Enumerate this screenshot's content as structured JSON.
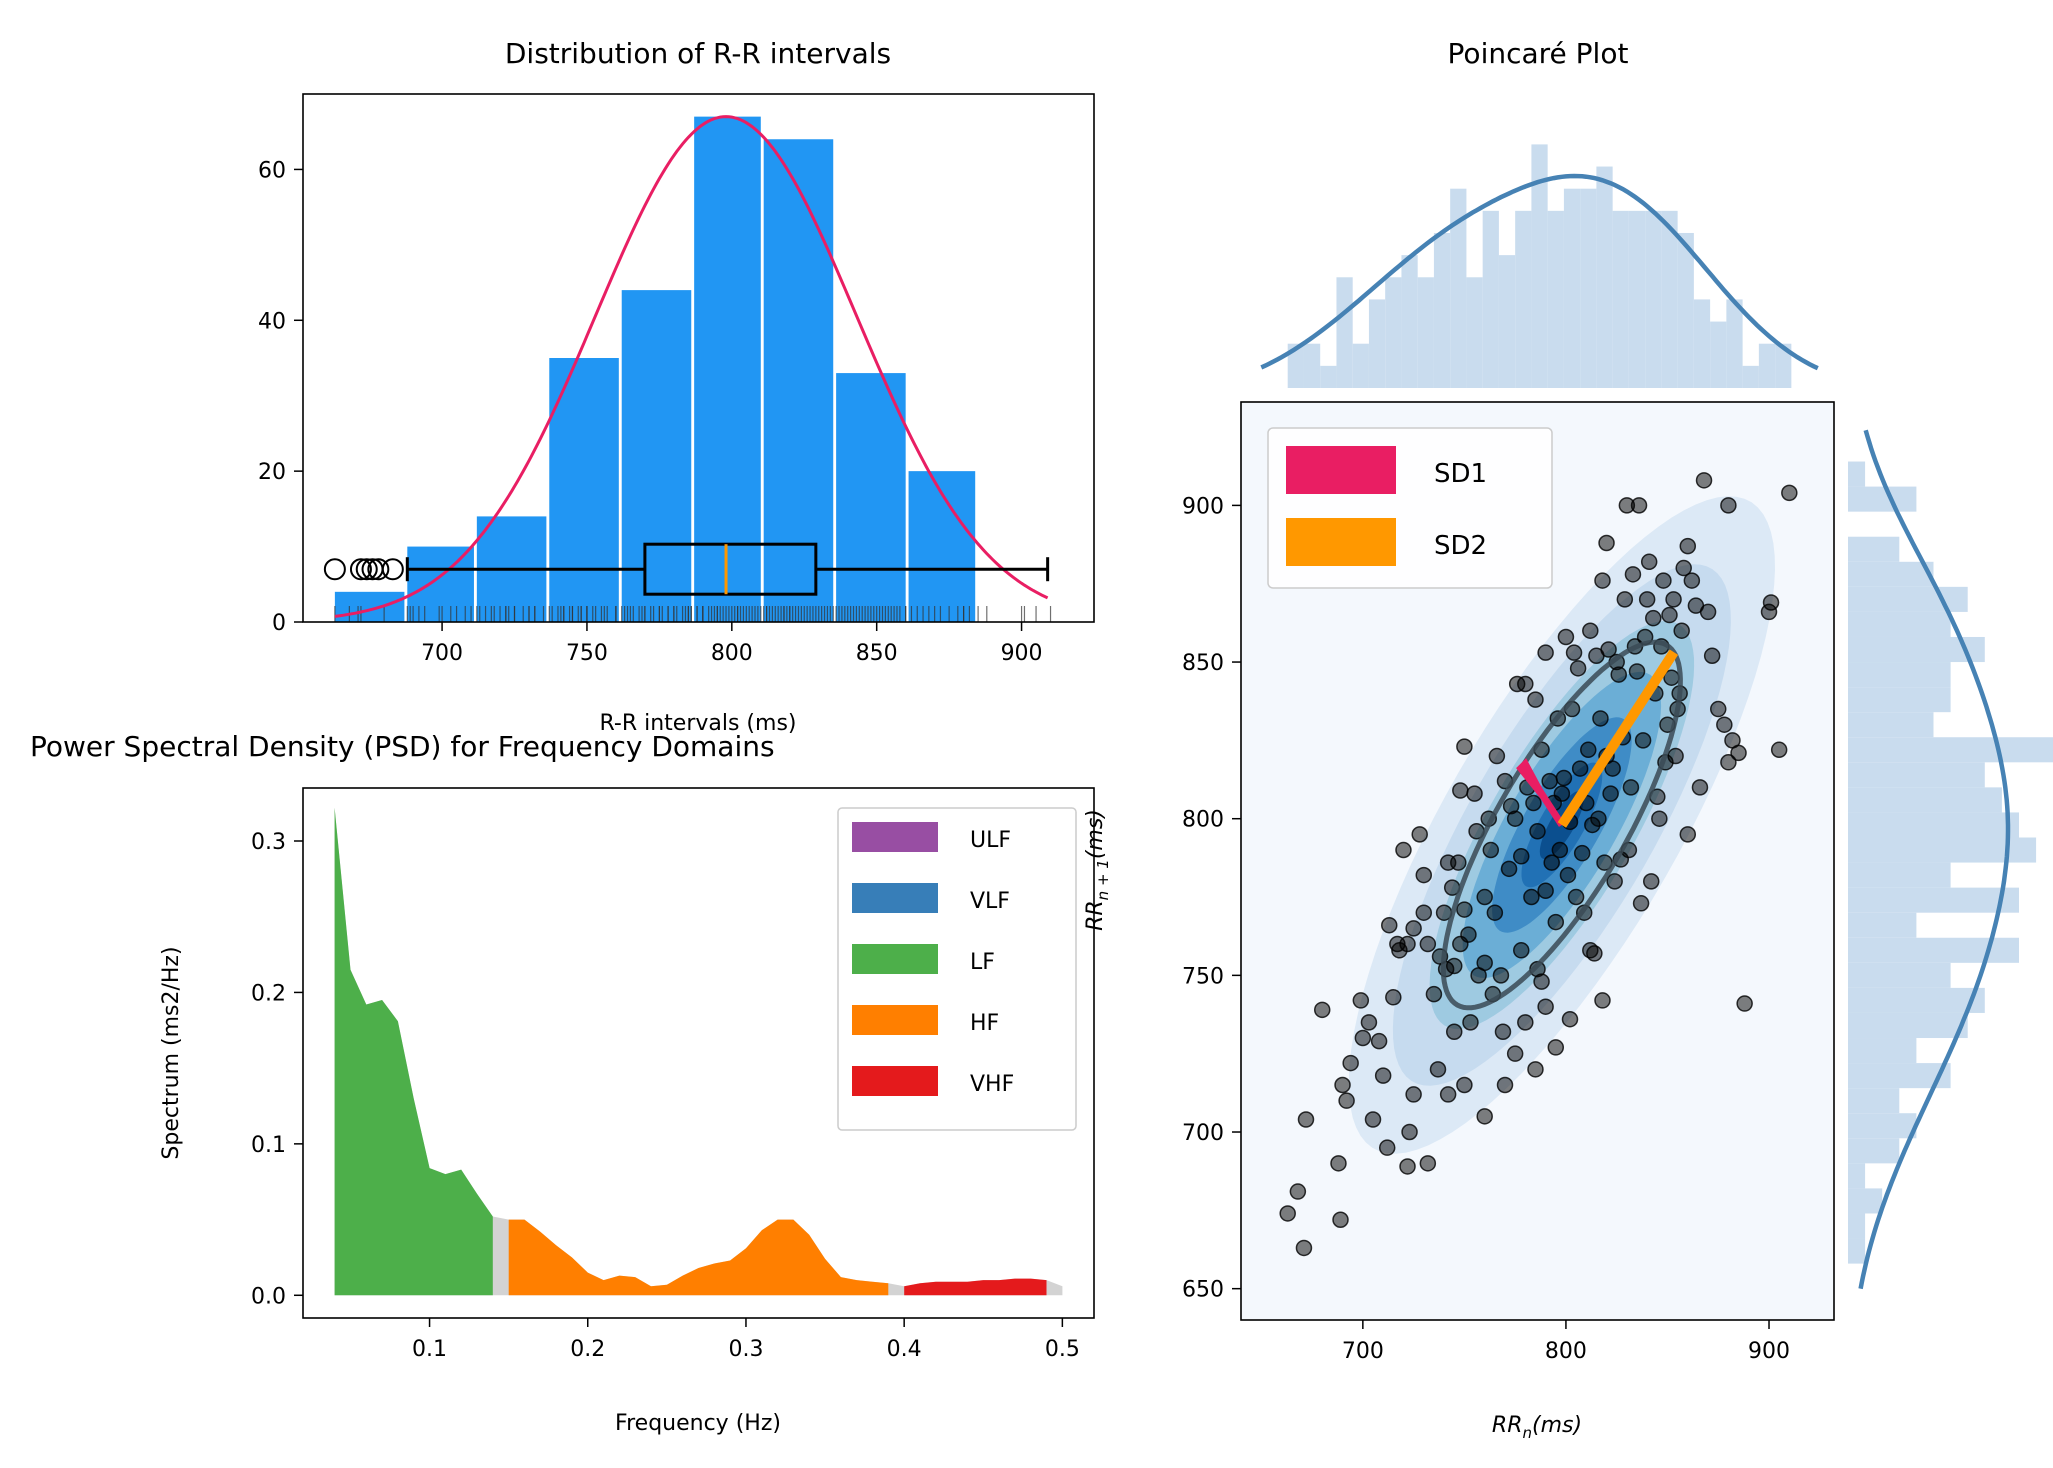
{
  "colors": {
    "hist_bar": "#2196F3",
    "normal_curve": "#E91E63",
    "box_median": "#FF9800",
    "ulf": "#984EA3",
    "vlf": "#377EB8",
    "lf": "#4DAF4A",
    "hf": "#FF7F00",
    "vhf": "#E41A1C",
    "gap": "#D3D3D3",
    "sd1": "#E91E63",
    "sd2": "#FF9800",
    "marginal": "#4682B4",
    "marginal_fill": "#C9DCEE"
  },
  "chart_data": [
    {
      "type": "bar",
      "title": "Distribution of R-R intervals",
      "xlabel": "R-R intervals (ms)",
      "ylabel": "",
      "xlim": [
        652,
        925
      ],
      "ylim": [
        0,
        70
      ],
      "xticks": [
        "700",
        "750",
        "800",
        "850",
        "900"
      ],
      "yticks": [
        "0",
        "20",
        "40",
        "60"
      ],
      "bins": [
        {
          "x0": 663,
          "x1": 687,
          "count": 4
        },
        {
          "x0": 688,
          "x1": 711,
          "count": 10
        },
        {
          "x0": 712,
          "x1": 736,
          "count": 14
        },
        {
          "x0": 737,
          "x1": 761,
          "count": 35
        },
        {
          "x0": 762,
          "x1": 786,
          "count": 44
        },
        {
          "x0": 787,
          "x1": 810,
          "count": 67
        },
        {
          "x0": 811,
          "x1": 835,
          "count": 64
        },
        {
          "x0": 836,
          "x1": 860,
          "count": 33
        },
        {
          "x0": 861,
          "x1": 884,
          "count": 20
        }
      ],
      "normal_curve": {
        "mean": 798,
        "sd": 45,
        "peak": 67,
        "x_range": [
          663,
          909
        ]
      },
      "boxplot": {
        "whisker_low": 688,
        "q1": 770,
        "median": 798,
        "q3": 829,
        "whisker_high": 909,
        "y": 7,
        "outliers": [
          663,
          672,
          674,
          676,
          678,
          683
        ]
      }
    },
    {
      "type": "area",
      "title": "Power Spectral Density (PSD) for Frequency Domains",
      "xlabel": "Frequency (Hz)",
      "ylabel": "Spectrum (ms2/Hz)",
      "xlim": [
        0.02,
        0.52
      ],
      "ylim": [
        -0.015,
        0.335
      ],
      "xticks": [
        "0.1",
        "0.2",
        "0.3",
        "0.4",
        "0.5"
      ],
      "yticks": [
        "0.0",
        "0.1",
        "0.2",
        "0.3"
      ],
      "legend": [
        "ULF",
        "VLF",
        "LF",
        "HF",
        "VHF"
      ],
      "legend_position": "upper right",
      "spectrum": {
        "x": [
          0.04,
          0.05,
          0.06,
          0.07,
          0.08,
          0.09,
          0.1,
          0.11,
          0.12,
          0.13,
          0.14,
          0.15,
          0.16,
          0.17,
          0.18,
          0.19,
          0.2,
          0.21,
          0.22,
          0.23,
          0.24,
          0.25,
          0.26,
          0.27,
          0.28,
          0.29,
          0.3,
          0.31,
          0.32,
          0.33,
          0.34,
          0.35,
          0.36,
          0.37,
          0.38,
          0.39,
          0.4,
          0.41,
          0.42,
          0.43,
          0.44,
          0.45,
          0.46,
          0.47,
          0.48,
          0.49,
          0.5
        ],
        "y": [
          0.322,
          0.215,
          0.192,
          0.195,
          0.181,
          0.13,
          0.084,
          0.08,
          0.083,
          0.067,
          0.052,
          0.05,
          0.05,
          0.042,
          0.033,
          0.025,
          0.015,
          0.01,
          0.013,
          0.012,
          0.006,
          0.007,
          0.013,
          0.018,
          0.021,
          0.023,
          0.031,
          0.043,
          0.05,
          0.05,
          0.04,
          0.024,
          0.012,
          0.01,
          0.009,
          0.008,
          0.006,
          0.008,
          0.009,
          0.009,
          0.009,
          0.01,
          0.01,
          0.011,
          0.011,
          0.01,
          0.006
        ]
      },
      "bands": [
        {
          "name": "LF",
          "range": [
            0.04,
            0.14
          ]
        },
        {
          "name": "HF",
          "range": [
            0.15,
            0.39
          ]
        },
        {
          "name": "VHF",
          "range": [
            0.4,
            0.49
          ]
        }
      ]
    },
    {
      "type": "scatter",
      "title": "Poincaré Plot",
      "xlabel": "RR_n(ms)",
      "ylabel": "RR_n+1(ms)",
      "xlim": [
        640,
        932
      ],
      "ylim": [
        640,
        933
      ],
      "xticks": [
        "700",
        "800",
        "900"
      ],
      "yticks": [
        "650",
        "700",
        "750",
        "800",
        "850",
        "900"
      ],
      "legend": [
        "SD1",
        "SD2"
      ],
      "legend_position": "upper left",
      "center": [
        798,
        798
      ],
      "sd1": 27,
      "sd2": 78,
      "points": [
        [
          663,
          674
        ],
        [
          668,
          681
        ],
        [
          671,
          663
        ],
        [
          672,
          704
        ],
        [
          680,
          739
        ],
        [
          688,
          690
        ],
        [
          689,
          672
        ],
        [
          690,
          715
        ],
        [
          692,
          710
        ],
        [
          694,
          722
        ],
        [
          699,
          742
        ],
        [
          700,
          730
        ],
        [
          703,
          735
        ],
        [
          705,
          704
        ],
        [
          708,
          729
        ],
        [
          710,
          718
        ],
        [
          712,
          695
        ],
        [
          715,
          743
        ],
        [
          718,
          758
        ],
        [
          720,
          790
        ],
        [
          722,
          760
        ],
        [
          722,
          689
        ],
        [
          723,
          700
        ],
        [
          725,
          765
        ],
        [
          725,
          712
        ],
        [
          728,
          795
        ],
        [
          730,
          770
        ],
        [
          730,
          782
        ],
        [
          732,
          760
        ],
        [
          735,
          744
        ],
        [
          737,
          720
        ],
        [
          738,
          756
        ],
        [
          740,
          770
        ],
        [
          741,
          752
        ],
        [
          742,
          786
        ],
        [
          744,
          778
        ],
        [
          745,
          732
        ],
        [
          745,
          753
        ],
        [
          747,
          786
        ],
        [
          748,
          760
        ],
        [
          748,
          809
        ],
        [
          750,
          823
        ],
        [
          750,
          771
        ],
        [
          752,
          763
        ],
        [
          753,
          735
        ],
        [
          755,
          808
        ],
        [
          756,
          796
        ],
        [
          757,
          750
        ],
        [
          760,
          775
        ],
        [
          760,
          754
        ],
        [
          762,
          800
        ],
        [
          763,
          790
        ],
        [
          764,
          744
        ],
        [
          765,
          770
        ],
        [
          766,
          820
        ],
        [
          768,
          750
        ],
        [
          769,
          732
        ],
        [
          770,
          812
        ],
        [
          772,
          784
        ],
        [
          773,
          804
        ],
        [
          775,
          800
        ],
        [
          776,
          843
        ],
        [
          778,
          788
        ],
        [
          778,
          758
        ],
        [
          780,
          843
        ],
        [
          781,
          810
        ],
        [
          783,
          775
        ],
        [
          784,
          805
        ],
        [
          785,
          838
        ],
        [
          786,
          796
        ],
        [
          786,
          752
        ],
        [
          788,
          748
        ],
        [
          788,
          822
        ],
        [
          790,
          853
        ],
        [
          790,
          777
        ],
        [
          792,
          812
        ],
        [
          793,
          786
        ],
        [
          794,
          805
        ],
        [
          795,
          767
        ],
        [
          796,
          832
        ],
        [
          797,
          790
        ],
        [
          798,
          808
        ],
        [
          799,
          813
        ],
        [
          800,
          858
        ],
        [
          801,
          782
        ],
        [
          802,
          799
        ],
        [
          803,
          835
        ],
        [
          804,
          853
        ],
        [
          805,
          775
        ],
        [
          806,
          848
        ],
        [
          807,
          816
        ],
        [
          808,
          789
        ],
        [
          809,
          770
        ],
        [
          810,
          805
        ],
        [
          811,
          822
        ],
        [
          812,
          860
        ],
        [
          813,
          798
        ],
        [
          814,
          757
        ],
        [
          815,
          852
        ],
        [
          816,
          800
        ],
        [
          817,
          832
        ],
        [
          818,
          876
        ],
        [
          819,
          786
        ],
        [
          820,
          820
        ],
        [
          821,
          854
        ],
        [
          822,
          808
        ],
        [
          823,
          816
        ],
        [
          824,
          780
        ],
        [
          825,
          850
        ],
        [
          826,
          846
        ],
        [
          827,
          787
        ],
        [
          828,
          826
        ],
        [
          829,
          870
        ],
        [
          830,
          900
        ],
        [
          831,
          790
        ],
        [
          832,
          810
        ],
        [
          833,
          878
        ],
        [
          834,
          855
        ],
        [
          835,
          847
        ],
        [
          836,
          900
        ],
        [
          837,
          773
        ],
        [
          838,
          825
        ],
        [
          839,
          858
        ],
        [
          840,
          870
        ],
        [
          841,
          882
        ],
        [
          842,
          780
        ],
        [
          843,
          864
        ],
        [
          844,
          840
        ],
        [
          845,
          807
        ],
        [
          846,
          800
        ],
        [
          847,
          855
        ],
        [
          848,
          876
        ],
        [
          849,
          818
        ],
        [
          850,
          830
        ],
        [
          851,
          865
        ],
        [
          852,
          845
        ],
        [
          853,
          870
        ],
        [
          854,
          820
        ],
        [
          855,
          835
        ],
        [
          856,
          840
        ],
        [
          857,
          860
        ],
        [
          858,
          880
        ],
        [
          860,
          795
        ],
        [
          862,
          876
        ],
        [
          864,
          868
        ],
        [
          866,
          810
        ],
        [
          868,
          908
        ],
        [
          870,
          866
        ],
        [
          872,
          852
        ],
        [
          875,
          835
        ],
        [
          878,
          830
        ],
        [
          880,
          818
        ],
        [
          882,
          825
        ],
        [
          885,
          821
        ],
        [
          888,
          741
        ],
        [
          900,
          866
        ],
        [
          901,
          869
        ],
        [
          905,
          822
        ],
        [
          910,
          904
        ],
        [
          880,
          900
        ],
        [
          860,
          887
        ],
        [
          820,
          888
        ],
        [
          818,
          742
        ],
        [
          812,
          758
        ],
        [
          802,
          736
        ],
        [
          795,
          727
        ],
        [
          790,
          740
        ],
        [
          785,
          720
        ],
        [
          780,
          735
        ],
        [
          775,
          725
        ],
        [
          770,
          715
        ],
        [
          760,
          705
        ],
        [
          750,
          715
        ],
        [
          742,
          712
        ],
        [
          732,
          690
        ],
        [
          717,
          760
        ],
        [
          713,
          766
        ]
      ]
    }
  ]
}
